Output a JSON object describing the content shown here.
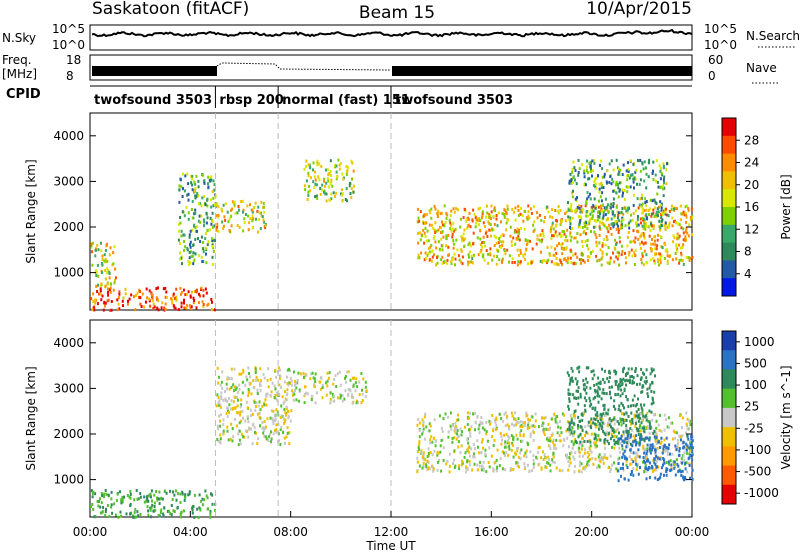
{
  "chart_data": {
    "type": "heatmap",
    "header": {
      "site": "Saskatoon (fitACF)",
      "beam": "Beam 15",
      "date": "10/Apr/2015"
    },
    "strip_top": {
      "left_label": "N.Sky",
      "right_label": "N.Search",
      "left_ticks": [
        "10^5",
        "10^0"
      ],
      "right_ticks": [
        "10^5",
        "10^0"
      ]
    },
    "strip_freq": {
      "left_label_1": "Freq.",
      "left_label_2": "[MHz]",
      "right_label": "Nave",
      "left_ticks": [
        "18",
        "8"
      ],
      "right_ticks": [
        "60",
        "0"
      ]
    },
    "cpid": {
      "label": "CPID",
      "segments": [
        {
          "name": "twofsound 3503",
          "start_h": 0,
          "end_h": 5
        },
        {
          "name": "rbsp 200",
          "start_h": 5,
          "end_h": 7.5
        },
        {
          "name": "normal (fast) 151",
          "start_h": 7.5,
          "end_h": 12
        },
        {
          "name": "twofsound 3503",
          "start_h": 12,
          "end_h": 24
        }
      ]
    },
    "xaxis": {
      "label": "Time UT",
      "ticks": [
        "00:00",
        "04:00",
        "08:00",
        "12:00",
        "16:00",
        "20:00",
        "00:00"
      ],
      "range_h": [
        0,
        24
      ]
    },
    "yaxis": {
      "label": "Slant Range [km]",
      "range": [
        180,
        4500
      ],
      "ticks": [
        "1000",
        "2000",
        "3000",
        "4000"
      ]
    },
    "panels": [
      {
        "quantity": "Power",
        "colorbar_label": "Power [dB]",
        "colorbar_ticks": [
          "28",
          "24",
          "20",
          "16",
          "12",
          "8",
          "4"
        ],
        "colors": [
          "#e60000",
          "#ff4a00",
          "#ff8c00",
          "#f0c000",
          "#d8e800",
          "#7fd000",
          "#3aa868",
          "#2e8a5a",
          "#225aa6",
          "#0018e6"
        ],
        "regions": [
          {
            "t0": 0,
            "t1": 5,
            "r0": 200,
            "r1": 700,
            "value": 26
          },
          {
            "t0": 0,
            "t1": 1,
            "r0": 700,
            "r1": 1700,
            "value": 18
          },
          {
            "t0": 3.5,
            "t1": 5,
            "r0": 1200,
            "r1": 3200,
            "value": 12
          },
          {
            "t0": 5,
            "t1": 7,
            "r0": 1900,
            "r1": 2600,
            "value": 18
          },
          {
            "t0": 8.5,
            "t1": 10.5,
            "r0": 2600,
            "r1": 3500,
            "value": 16
          },
          {
            "t0": 13,
            "t1": 24,
            "r0": 1200,
            "r1": 2500,
            "value": 20
          },
          {
            "t0": 19,
            "t1": 23,
            "r0": 2000,
            "r1": 3500,
            "value": 12
          }
        ]
      },
      {
        "quantity": "Velocity",
        "colorbar_label": "Velocity [m s^-1]",
        "colorbar_ticks": [
          "1000",
          "500",
          "100",
          "25",
          "-25",
          "-100",
          "-500",
          "-1000"
        ],
        "colors": [
          "#1a3faa",
          "#2a72c4",
          "#2e8a5a",
          "#53c030",
          "#c8c8c8",
          "#f0c000",
          "#ff9a00",
          "#ff5a00",
          "#e60000"
        ],
        "regions": [
          {
            "t0": 0,
            "t1": 5,
            "r0": 200,
            "r1": 800,
            "value": 100
          },
          {
            "t0": 5,
            "t1": 8,
            "r0": 1800,
            "r1": 3500,
            "value": 0
          },
          {
            "t0": 8,
            "t1": 11,
            "r0": 2700,
            "r1": 3400,
            "value": 0
          },
          {
            "t0": 13,
            "t1": 24,
            "r0": 1200,
            "r1": 2500,
            "value": 0
          },
          {
            "t0": 19,
            "t1": 22.5,
            "r0": 1800,
            "r1": 3500,
            "value": 200
          },
          {
            "t0": 21,
            "t1": 24,
            "r0": 1000,
            "r1": 2000,
            "value": 600
          }
        ]
      }
    ]
  }
}
